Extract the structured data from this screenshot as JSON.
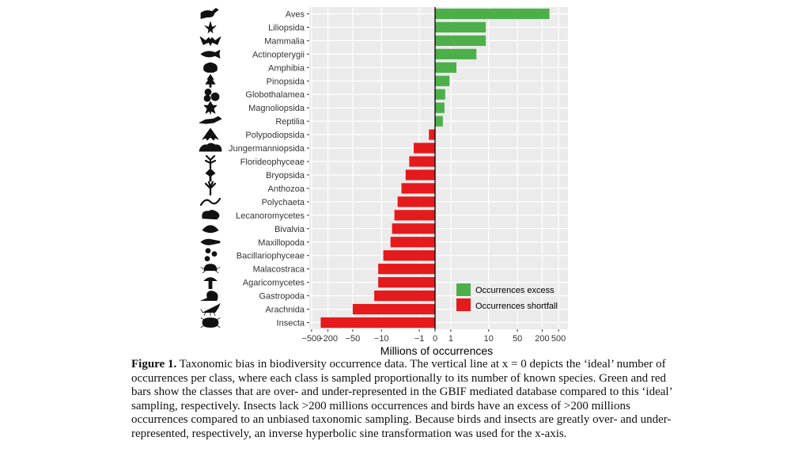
{
  "chart_data": {
    "type": "bar",
    "orientation": "horizontal",
    "xlabel": "Millions of occurrences",
    "x_scale": "inverse hyperbolic sine",
    "x_ticks": [
      {
        "value": -500,
        "label": "−500"
      },
      {
        "value": -200,
        "label": "−200"
      },
      {
        "value": -50,
        "label": "−50"
      },
      {
        "value": -10,
        "label": "−10"
      },
      {
        "value": -1,
        "label": "−1"
      },
      {
        "value": 0,
        "label": "0"
      },
      {
        "value": 1,
        "label": "1"
      },
      {
        "value": 10,
        "label": "10"
      },
      {
        "value": 50,
        "label": "50"
      },
      {
        "value": 200,
        "label": "200"
      },
      {
        "value": 500,
        "label": "500"
      }
    ],
    "xlim": [
      -600,
      600
    ],
    "grid": true,
    "legend_position": "bottom-right",
    "series": [
      {
        "name": "Occurrences excess",
        "color": "#4DAF4A"
      },
      {
        "name": "Occurrences shortfall",
        "color": "#E41A1C"
      }
    ],
    "categories": [
      "Aves",
      "Liliopsida",
      "Mammalia",
      "Actinopterygii",
      "Amphibia",
      "Pinopsida",
      "Globothalamea",
      "Magnoliopsida",
      "Reptilia",
      "Polypodiopsida",
      "Jungermanniopsida",
      "Florideophyceae",
      "Bryopsida",
      "Anthozoa",
      "Polychaeta",
      "Lecanoromycetes",
      "Bivalvia",
      "Maxillopoda",
      "Bacillariophyceae",
      "Malacostraca",
      "Agaricomycetes",
      "Gastropoda",
      "Arachnida",
      "Insecta"
    ],
    "values": [
      300,
      8.5,
      8.5,
      5.0,
      1.5,
      0.9,
      0.6,
      0.55,
      0.45,
      -0.35,
      -1.5,
      -2.0,
      -2.5,
      -3.2,
      -4.0,
      -4.8,
      -5.5,
      -6.0,
      -9.0,
      -12.0,
      -12.0,
      -15.0,
      -50.0,
      -300.0
    ]
  },
  "silhouette_icons": [
    "bird-icon",
    "liliopsida-plant-icon",
    "bat-icon",
    "fish-icon",
    "frog-icon",
    "conifer-icon",
    "foram-icon",
    "leaf-icon",
    "lizard-icon",
    "fern-icon",
    "liverwort-icon",
    "red-alga-icon",
    "moss-icon",
    "coral-icon",
    "worm-icon",
    "lichen-icon",
    "clam-icon",
    "copepod-icon",
    "diatom-icon",
    "crab-icon",
    "mushroom-icon",
    "snail-icon",
    "scorpion-icon",
    "beetle-icon"
  ],
  "caption": {
    "lead": "Figure 1.",
    "text": "Taxonomic bias in biodiversity occurrence data. The vertical line at x = 0 depicts the ‘ideal’ number of occurrences per class, where each class is sampled proportionally to its number of known species. Green and red bars show the classes that are over- and under-represented in the GBIF mediated database compared to this ‘ideal’ sampling, respectively. Insects lack >200 millions occurrences and birds have an excess of >200 millions occurrences compared to an unbiased taxonomic sampling. Because birds and insects are greatly over- and under-represented, respectively, an inverse hyperbolic sine transformation was used for the x-axis."
  }
}
